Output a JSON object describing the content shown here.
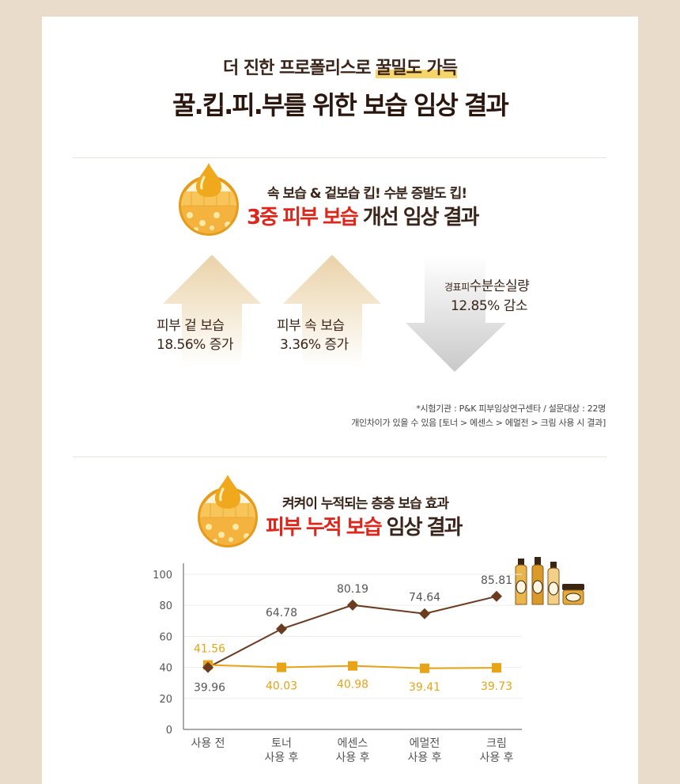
{
  "header": {
    "subtitle_prefix": "더 진한 프로폴리스로 ",
    "subtitle_highlight": "꿀밀도 가득",
    "title": "꿀.킵.피.부를 위한 보습 임상 결과"
  },
  "section1": {
    "subtitle": "속 보습 & 겉보습 킵! 수분 증발도 킵!",
    "title_red": "3중 피부 보습",
    "title_rest": " 개선 임상 결과",
    "arrows": [
      {
        "direction": "up",
        "line1": "피부 겉 보습",
        "line2": "18.56% 증가"
      },
      {
        "direction": "up",
        "line1": "피부 속 보습",
        "line2": "3.36% 증가"
      },
      {
        "direction": "down",
        "line1_small": "경표피",
        "line1": "수분손실량",
        "line2": "12.85% 감소"
      }
    ],
    "note1": "*시험기관 : P&K 피부임상연구센타 / 설문대상 : 22명",
    "note2": "개인차이가 있을 수 있음 [토너 > 에센스 > 에멀전 > 크림 사용 시 결과]"
  },
  "section2": {
    "subtitle": "켜켜이 누적되는 층층 보습 효과",
    "title_red": "피부 누적 보습",
    "title_rest": " 임상 결과"
  },
  "colors": {
    "brown": "#6b3a1f",
    "gold": "#e8a317",
    "red": "#e0261b"
  },
  "chart_data": {
    "type": "line",
    "categories": [
      [
        "사용 전"
      ],
      [
        "토너",
        "사용 후"
      ],
      [
        "에센스",
        "사용 후"
      ],
      [
        "에멀전",
        "사용 후"
      ],
      [
        "크림",
        "사용 후"
      ]
    ],
    "series": [
      {
        "color": "#6b3a1f",
        "marker": "diamond",
        "values": [
          39.96,
          64.78,
          80.19,
          74.64,
          85.81
        ],
        "labels": [
          "39.96",
          "64.78",
          "80.19",
          "74.64",
          "85.81"
        ]
      },
      {
        "color": "#e8a317",
        "marker": "square",
        "values": [
          41.56,
          40.03,
          40.98,
          39.41,
          39.73
        ],
        "labels": [
          "41.56",
          "40.03",
          "40.98",
          "39.41",
          "39.73"
        ]
      }
    ],
    "yticks": [
      0,
      20,
      40,
      60,
      80,
      100
    ],
    "ylim": [
      0,
      100
    ],
    "grid": true
  }
}
